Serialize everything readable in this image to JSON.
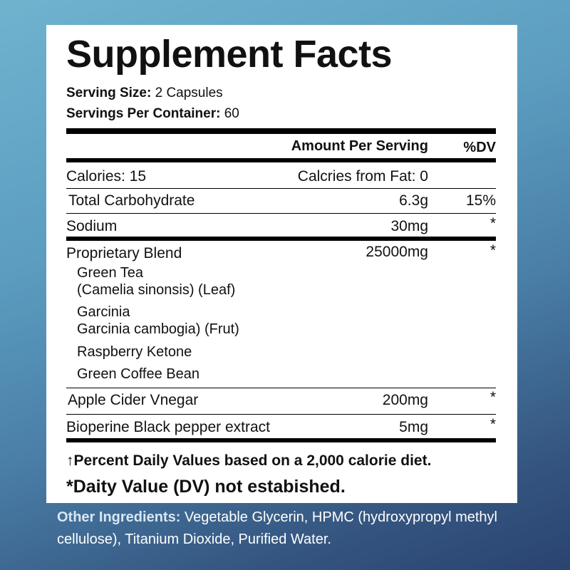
{
  "title": "Supplement Facts",
  "serving_size": {
    "label": "Serving Size:",
    "value": "2 Capsules"
  },
  "servings_per_container": {
    "label": "Servings Per Container:",
    "value": "60"
  },
  "header": {
    "amount": "Amount Per Serving",
    "dv": "%DV"
  },
  "calories": {
    "label": "Calories: 15",
    "fat": "Calcries from Fat: 0"
  },
  "rows": [
    {
      "name": "Total Carbohydrate",
      "amount": "6.3g",
      "dv": "15%"
    },
    {
      "name": "Sodium",
      "amount": "30mg",
      "dv": "*"
    },
    {
      "name": "Proprietary Blend",
      "amount": "25000mg",
      "dv": "*"
    },
    {
      "name": "Apple Cider Vnegar",
      "amount": "200mg",
      "dv": "*"
    },
    {
      "name": "Bioperine Black pepper extract",
      "amount": "5mg",
      "dv": "*"
    }
  ],
  "blend": [
    "Green Tea",
    "(Camelia sinonsis) (Leaf)",
    "Garcinia",
    "Garcinia cambogia) (Frut)",
    "Raspberry Ketone",
    "Green Coffee Bean"
  ],
  "footnotes": [
    "↑Percent Daily Values based on a 2,000 calorie diet.",
    "*Daity Value (DV) not estabished."
  ],
  "other": {
    "label": "Other Ingredients:",
    "text": " Vegetable Glycerin, HPMC (hydroxypropyl methyl cellulose), Titanium Dioxide, Purified Water."
  }
}
